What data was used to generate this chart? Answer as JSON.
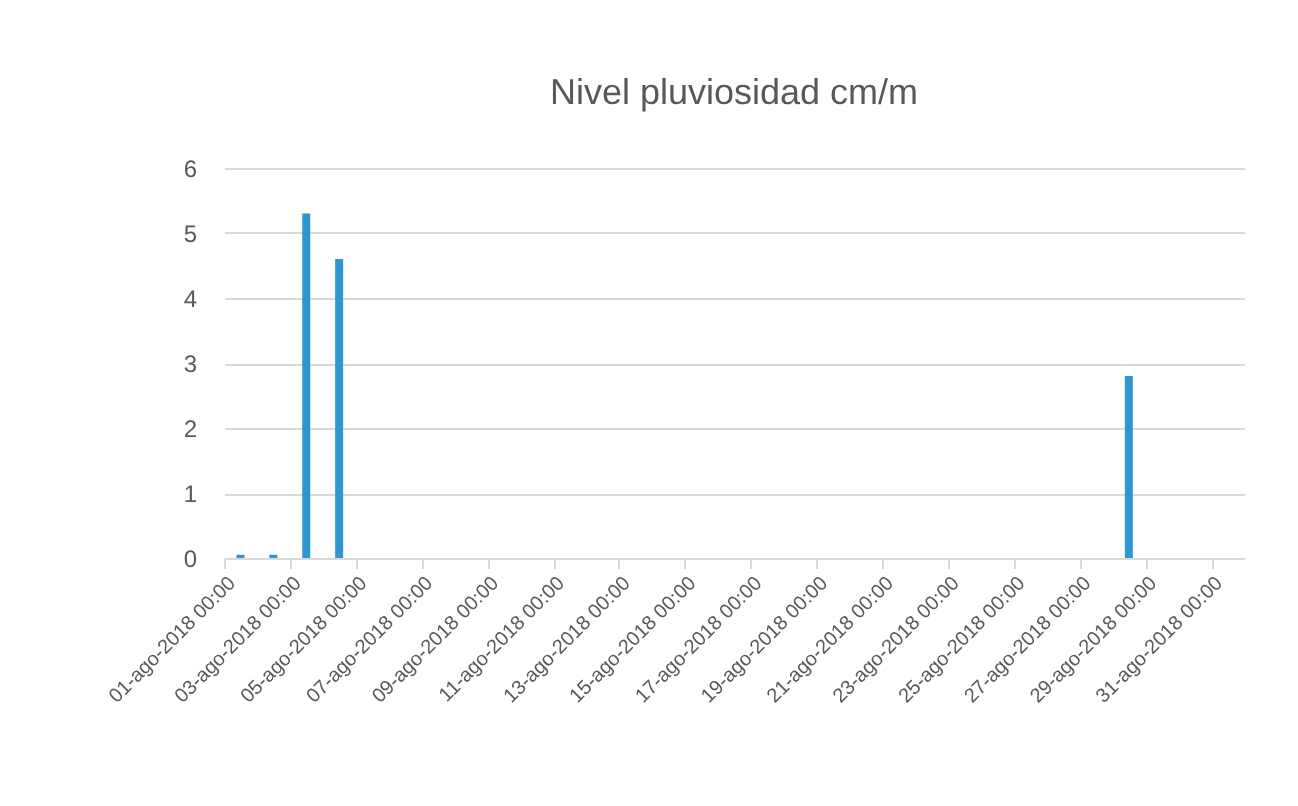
{
  "chart_data": {
    "type": "bar",
    "title": "Nivel pluviosidad  cm/m",
    "x": [
      "2018-08-01T12:00",
      "2018-08-02T12:00",
      "2018-08-03T12:00",
      "2018-08-04T12:00",
      "2018-08-28T12:00"
    ],
    "values": [
      0.05,
      0.05,
      5.3,
      4.6,
      2.8
    ],
    "color": "#2e96d0",
    "xlim": [
      "2018-08-01",
      "2018-09-01"
    ],
    "xticks": [
      {
        "value": "2018-08-01",
        "label": "01-ago-2018 00:00"
      },
      {
        "value": "2018-08-03",
        "label": "03-ago-2018 00:00"
      },
      {
        "value": "2018-08-05",
        "label": "05-ago-2018 00:00"
      },
      {
        "value": "2018-08-07",
        "label": "07-ago-2018 00:00"
      },
      {
        "value": "2018-08-09",
        "label": "09-ago-2018 00:00"
      },
      {
        "value": "2018-08-11",
        "label": "11-ago-2018 00:00"
      },
      {
        "value": "2018-08-13",
        "label": "13-ago-2018 00:00"
      },
      {
        "value": "2018-08-15",
        "label": "15-ago-2018 00:00"
      },
      {
        "value": "2018-08-17",
        "label": "17-ago-2018 00:00"
      },
      {
        "value": "2018-08-19",
        "label": "19-ago-2018 00:00"
      },
      {
        "value": "2018-08-21",
        "label": "21-ago-2018 00:00"
      },
      {
        "value": "2018-08-23",
        "label": "23-ago-2018 00:00"
      },
      {
        "value": "2018-08-25",
        "label": "25-ago-2018 00:00"
      },
      {
        "value": "2018-08-27",
        "label": "27-ago-2018 00:00"
      },
      {
        "value": "2018-08-29",
        "label": "29-ago-2018 00:00"
      },
      {
        "value": "2018-08-31",
        "label": "31-ago-2018 00:00"
      }
    ],
    "ylim": [
      0,
      6
    ],
    "yticks": [
      0,
      1,
      2,
      3,
      4,
      5,
      6
    ],
    "grid": "y"
  }
}
